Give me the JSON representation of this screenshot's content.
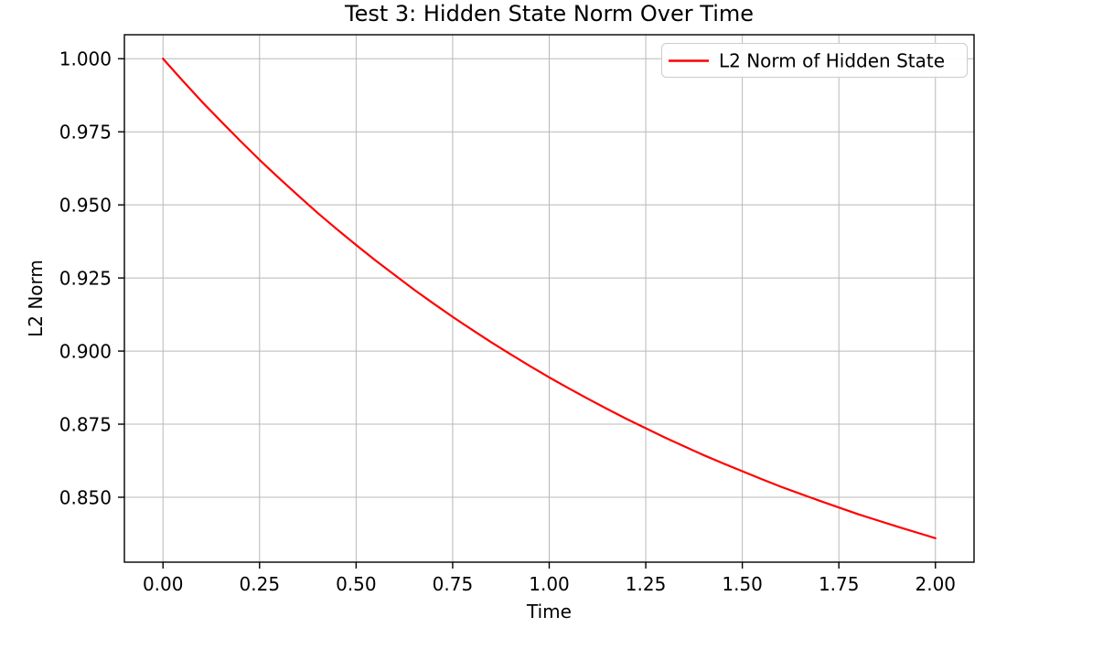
{
  "chart_data": {
    "type": "line",
    "title": "Test 3: Hidden State Norm Over Time",
    "xlabel": "Time",
    "ylabel": "L2 Norm",
    "grid": true,
    "legend_position": "upper right",
    "xlim": [
      -0.1,
      2.1
    ],
    "ylim": [
      0.8278,
      1.0082
    ],
    "xtick_values": [
      0.0,
      0.25,
      0.5,
      0.75,
      1.0,
      1.25,
      1.5,
      1.75,
      2.0
    ],
    "xtick_labels": [
      "0.00",
      "0.25",
      "0.50",
      "0.75",
      "1.00",
      "1.25",
      "1.50",
      "1.75",
      "2.00"
    ],
    "ytick_values": [
      0.85,
      0.875,
      0.9,
      0.925,
      0.95,
      0.975,
      1.0
    ],
    "ytick_labels": [
      "0.850",
      "0.875",
      "0.900",
      "0.925",
      "0.950",
      "0.975",
      "1.000"
    ],
    "grid_color": "#b8b8b8",
    "spine_color": "#000000",
    "series": [
      {
        "name": "L2 Norm of Hidden State",
        "color": "#ff0000",
        "x": [
          0.0,
          0.05,
          0.1,
          0.15,
          0.2,
          0.25,
          0.3,
          0.35,
          0.4,
          0.45,
          0.5,
          0.55,
          0.6,
          0.65,
          0.7,
          0.75,
          0.8,
          0.85,
          0.9,
          0.95,
          1.0,
          1.05,
          1.1,
          1.15,
          1.2,
          1.25,
          1.3,
          1.35,
          1.4,
          1.45,
          1.5,
          1.55,
          1.6,
          1.65,
          1.7,
          1.75,
          1.8,
          1.85,
          1.9,
          1.95,
          2.0
        ],
        "y": [
          1.0,
          0.9926,
          0.9854,
          0.9786,
          0.9719,
          0.9654,
          0.9592,
          0.9532,
          0.9473,
          0.9417,
          0.9363,
          0.931,
          0.926,
          0.921,
          0.9163,
          0.9117,
          0.9073,
          0.903,
          0.8989,
          0.8949,
          0.891,
          0.8873,
          0.8837,
          0.8802,
          0.8768,
          0.8736,
          0.8704,
          0.8674,
          0.8644,
          0.8616,
          0.8589,
          0.8562,
          0.8536,
          0.8512,
          0.8488,
          0.8465,
          0.8442,
          0.8421,
          0.84,
          0.838,
          0.836
        ]
      }
    ]
  }
}
